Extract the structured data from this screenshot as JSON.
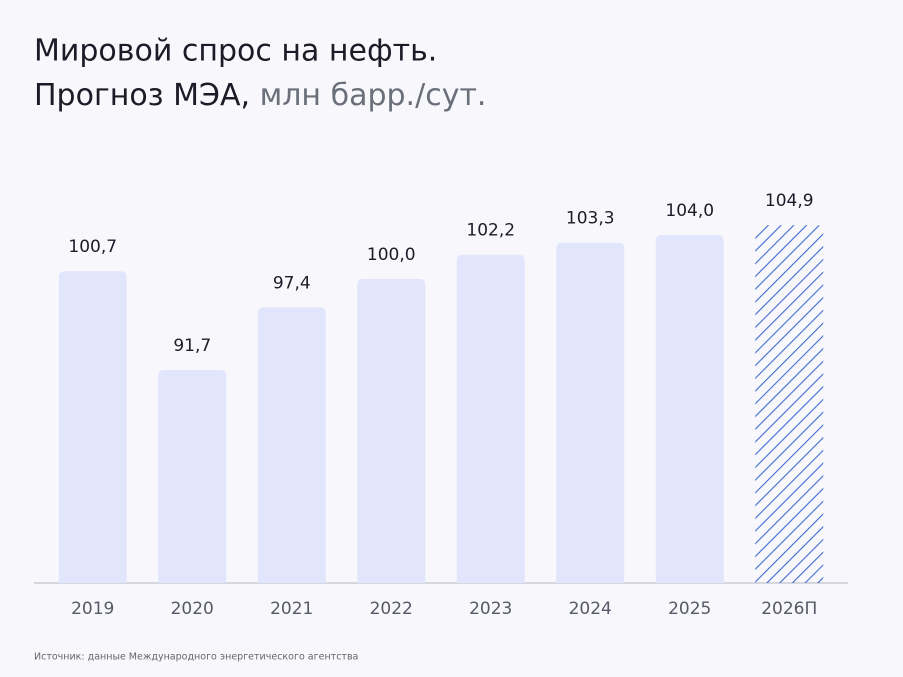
{
  "chart_data": {
    "type": "bar",
    "title_line1": "Мировой спрос на нефть.",
    "title_line2": "Прогноз МЭА,",
    "unit": "млн барр./сут.",
    "source": "Источник: данные Международного энергетического агентства",
    "categories": [
      "2019",
      "2020",
      "2021",
      "2022",
      "2023",
      "2024",
      "2025",
      "2026П"
    ],
    "values": [
      100.7,
      91.7,
      97.4,
      100.0,
      102.2,
      103.3,
      104.0,
      104.9
    ],
    "value_labels": [
      "100,7",
      "91,7",
      "97,4",
      "100,0",
      "102,2",
      "103,3",
      "104,0",
      "104,9"
    ],
    "patterns": [
      "solid",
      "solid",
      "solid",
      "solid",
      "solid",
      "solid",
      "solid",
      "hatch"
    ],
    "color": "#e2e6fc",
    "hatch_color": "#3f6bd0",
    "ylim": [
      72.3,
      106
    ]
  }
}
